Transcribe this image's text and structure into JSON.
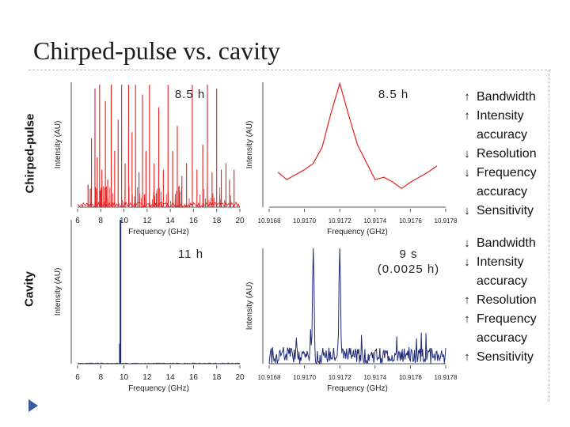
{
  "title": "Chirped-pulse vs. cavity",
  "row_labels": {
    "top": "Chirped-pulse",
    "bottom": "Cavity"
  },
  "colors": {
    "chirped": "#e51e1e",
    "cavity": "#1f2a7a",
    "arrow": "#111111",
    "nav": "#3b5aa0"
  },
  "chart_data": [
    {
      "id": "cp-wide",
      "type": "line",
      "condition": "8.5 h",
      "color": "#e51e1e",
      "xlabel": "Frequency (GHz)",
      "ylabel": "Intensity (AU)",
      "xlim": [
        6,
        20
      ],
      "ylim": [
        0,
        1
      ],
      "xticks": [
        "6",
        "8",
        "10",
        "12",
        "14",
        "16",
        "18",
        "20"
      ],
      "peaks": [
        [
          6.9,
          0.18
        ],
        [
          7.2,
          0.55
        ],
        [
          7.5,
          0.95
        ],
        [
          7.7,
          0.4
        ],
        [
          7.9,
          0.98
        ],
        [
          8.1,
          0.3
        ],
        [
          8.4,
          0.85
        ],
        [
          8.6,
          0.22
        ],
        [
          8.9,
          0.98
        ],
        [
          9.2,
          0.45
        ],
        [
          9.5,
          0.7
        ],
        [
          9.8,
          0.98
        ],
        [
          10.1,
          0.35
        ],
        [
          10.4,
          0.98
        ],
        [
          10.7,
          0.6
        ],
        [
          11.0,
          0.98
        ],
        [
          11.3,
          0.28
        ],
        [
          11.6,
          0.9
        ],
        [
          11.9,
          0.45
        ],
        [
          12.2,
          0.98
        ],
        [
          12.6,
          0.35
        ],
        [
          13.0,
          0.8
        ],
        [
          13.4,
          0.3
        ],
        [
          13.8,
          0.98
        ],
        [
          14.2,
          0.45
        ],
        [
          14.6,
          0.65
        ],
        [
          15.0,
          0.25
        ],
        [
          15.4,
          0.35
        ],
        [
          15.9,
          0.98
        ],
        [
          16.3,
          0.3
        ],
        [
          16.8,
          0.5
        ],
        [
          17.2,
          0.98
        ],
        [
          17.6,
          0.28
        ],
        [
          18.0,
          0.95
        ],
        [
          18.4,
          0.3
        ],
        [
          18.8,
          0.35
        ],
        [
          19.1,
          0.22
        ],
        [
          19.5,
          0.3
        ]
      ]
    },
    {
      "id": "cp-zoom",
      "type": "line",
      "condition": "8.5 h",
      "color": "#e51e1e",
      "xlabel": "Frequency (GHz)",
      "ylabel": "Intensity (AU)",
      "xlim": [
        10.9168,
        10.9178
      ],
      "ylim": [
        0,
        1
      ],
      "xticks": [
        "10.9168",
        "10.9170",
        "10.9172",
        "10.9174",
        "10.9176",
        "10.9178"
      ],
      "x": [
        10.91685,
        10.9169,
        10.91695,
        10.917,
        10.91705,
        10.9171,
        10.91715,
        10.9172,
        10.91725,
        10.9173,
        10.91735,
        10.9174,
        10.91745,
        10.9175,
        10.91755,
        10.9176,
        10.91765,
        10.9177,
        10.91775
      ],
      "y": [
        0.28,
        0.22,
        0.26,
        0.3,
        0.35,
        0.48,
        0.75,
        0.99,
        0.74,
        0.5,
        0.36,
        0.22,
        0.24,
        0.2,
        0.15,
        0.2,
        0.24,
        0.28,
        0.33
      ]
    },
    {
      "id": "cav-wide",
      "type": "line",
      "condition": "11 h",
      "color": "#1f2a7a",
      "xlabel": "Frequency (GHz)",
      "ylabel": "Intensity (AU)",
      "xlim": [
        6,
        20
      ],
      "ylim": [
        0,
        1
      ],
      "xticks": [
        "6",
        "8",
        "10",
        "12",
        "14",
        "16",
        "18",
        "20"
      ],
      "peaks": [
        [
          9.7,
          1.0
        ],
        [
          9.65,
          0.14
        ]
      ]
    },
    {
      "id": "cav-zoom",
      "type": "line",
      "condition": "9 s\n(0.0025 h)",
      "color": "#1f2a7a",
      "xlabel": "Frequency (GHz)",
      "ylabel": "Intensity (AU)",
      "xlim": [
        10.9168,
        10.9178
      ],
      "ylim": [
        0,
        1
      ],
      "xticks": [
        "10.9168",
        "10.9170",
        "10.9172",
        "10.9174",
        "10.9176",
        "10.9178"
      ],
      "noise_level": 0.14,
      "peaks": [
        [
          10.91705,
          0.92
        ],
        [
          10.9172,
          0.97
        ]
      ]
    }
  ],
  "comparison": {
    "chirped": [
      {
        "dir": "up",
        "label": "Bandwidth"
      },
      {
        "dir": "up",
        "label": "Intensity\n accuracy"
      },
      {
        "dir": "down",
        "label": "Resolution"
      },
      {
        "dir": "down",
        "label": "Frequency\n accuracy"
      },
      {
        "dir": "down",
        "label": "Sensitivity"
      }
    ],
    "cavity": [
      {
        "dir": "down",
        "label": "Bandwidth"
      },
      {
        "dir": "down",
        "label": "Intensity\n accuracy"
      },
      {
        "dir": "up",
        "label": "Resolution"
      },
      {
        "dir": "up",
        "label": "Frequency\n accuracy"
      },
      {
        "dir": "up",
        "label": "Sensitivity"
      }
    ]
  }
}
